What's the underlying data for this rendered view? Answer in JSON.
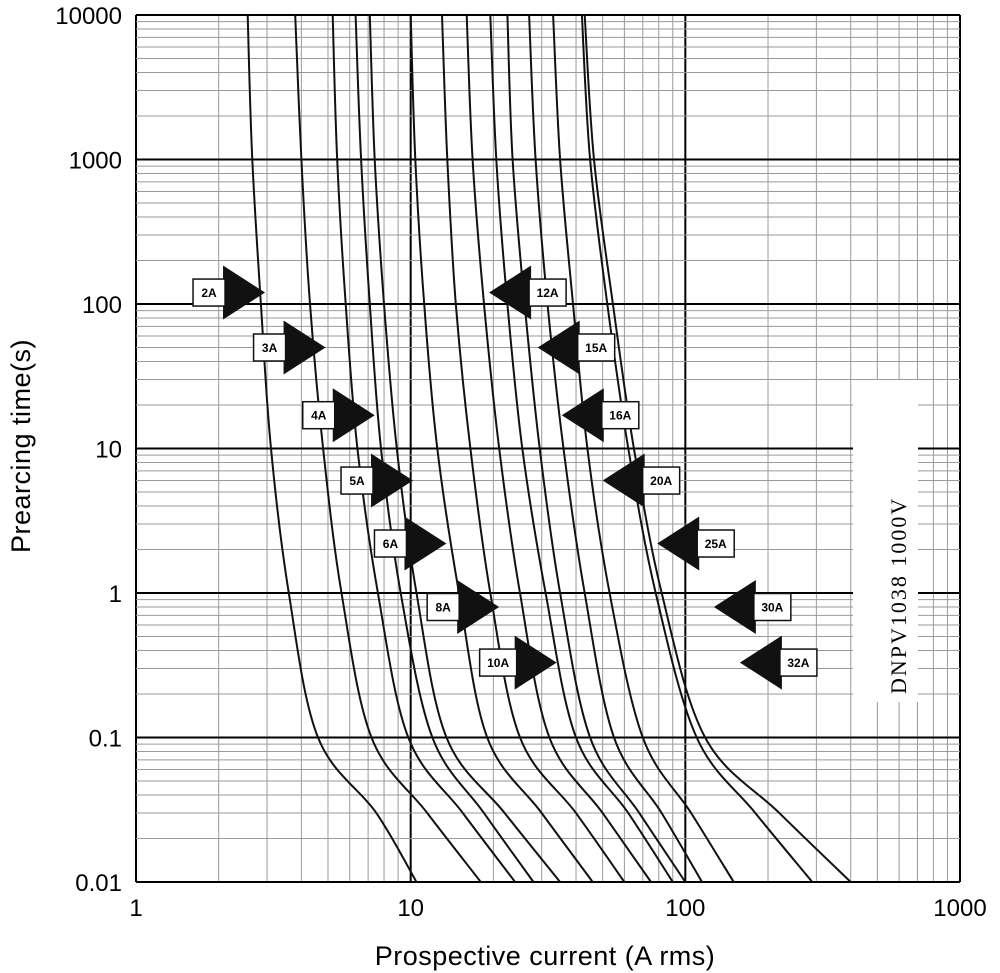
{
  "chart_data": {
    "type": "line",
    "title": "",
    "xlabel": "Prospective current (A rms)",
    "ylabel": "Prearcing time(s)",
    "x_scale": "log",
    "y_scale": "log",
    "xlim": [
      1,
      1000
    ],
    "ylim": [
      0.01,
      10000
    ],
    "x_ticks": [
      "1",
      "10",
      "100",
      "1000"
    ],
    "y_ticks": [
      "10000",
      "1000",
      "100",
      "10",
      "1",
      "0.1",
      "0.01"
    ],
    "grid": true,
    "annotation": "DNPV1038 1000V",
    "series": [
      {
        "name": "2A",
        "points": [
          [
            2.55,
            10000
          ],
          [
            2.65,
            1000
          ],
          [
            2.85,
            100
          ],
          [
            3.1,
            10
          ],
          [
            3.6,
            1
          ],
          [
            4.6,
            0.1
          ],
          [
            7.5,
            0.03
          ],
          [
            10.5,
            0.01
          ]
        ]
      },
      {
        "name": "3A",
        "points": [
          [
            3.8,
            10000
          ],
          [
            4.0,
            1000
          ],
          [
            4.3,
            100
          ],
          [
            4.8,
            10
          ],
          [
            5.6,
            1
          ],
          [
            7.2,
            0.1
          ],
          [
            11.5,
            0.03
          ],
          [
            18,
            0.01
          ]
        ]
      },
      {
        "name": "4A",
        "points": [
          [
            5.2,
            10000
          ],
          [
            5.4,
            1000
          ],
          [
            5.8,
            100
          ],
          [
            6.4,
            10
          ],
          [
            7.6,
            1
          ],
          [
            9.8,
            0.1
          ],
          [
            15.5,
            0.03
          ],
          [
            24,
            0.01
          ]
        ]
      },
      {
        "name": "5A",
        "points": [
          [
            6.3,
            10000
          ],
          [
            6.6,
            1000
          ],
          [
            7.1,
            100
          ],
          [
            7.8,
            10
          ],
          [
            9.2,
            1
          ],
          [
            12,
            0.1
          ],
          [
            18.5,
            0.03
          ],
          [
            28,
            0.01
          ]
        ]
      },
      {
        "name": "6A",
        "points": [
          [
            7.1,
            10000
          ],
          [
            7.4,
            1000
          ],
          [
            8.0,
            100
          ],
          [
            8.9,
            10
          ],
          [
            10.5,
            1
          ],
          [
            13.5,
            0.1
          ],
          [
            22,
            0.03
          ],
          [
            35,
            0.01
          ]
        ]
      },
      {
        "name": "8A",
        "points": [
          [
            10,
            10000
          ],
          [
            10.4,
            1000
          ],
          [
            11.2,
            100
          ],
          [
            12.5,
            10
          ],
          [
            15,
            1
          ],
          [
            19,
            0.1
          ],
          [
            30,
            0.03
          ],
          [
            46,
            0.01
          ]
        ]
      },
      {
        "name": "10A",
        "points": [
          [
            13,
            10000
          ],
          [
            13.6,
            1000
          ],
          [
            14.6,
            100
          ],
          [
            16.5,
            10
          ],
          [
            19.5,
            1
          ],
          [
            25,
            0.1
          ],
          [
            40,
            0.03
          ],
          [
            60,
            0.01
          ]
        ]
      },
      {
        "name": "12A",
        "points": [
          [
            16,
            10000
          ],
          [
            16.8,
            1000
          ],
          [
            18.5,
            100
          ],
          [
            21,
            10
          ],
          [
            25,
            1
          ],
          [
            32,
            0.1
          ],
          [
            50,
            0.03
          ],
          [
            75,
            0.01
          ]
        ]
      },
      {
        "name": "15A",
        "points": [
          [
            19.5,
            10000
          ],
          [
            20.5,
            1000
          ],
          [
            22.5,
            100
          ],
          [
            25.5,
            10
          ],
          [
            31,
            1
          ],
          [
            40,
            0.1
          ],
          [
            62,
            0.03
          ],
          [
            90,
            0.01
          ]
        ]
      },
      {
        "name": "16A",
        "points": [
          [
            22.5,
            10000
          ],
          [
            23.5,
            1000
          ],
          [
            26,
            100
          ],
          [
            29.5,
            10
          ],
          [
            35,
            1
          ],
          [
            45,
            0.1
          ],
          [
            68,
            0.03
          ],
          [
            100,
            0.01
          ]
        ]
      },
      {
        "name": "20A",
        "points": [
          [
            27,
            10000
          ],
          [
            28.5,
            1000
          ],
          [
            31.5,
            100
          ],
          [
            36,
            10
          ],
          [
            43,
            1
          ],
          [
            55,
            0.1
          ],
          [
            82,
            0.03
          ],
          [
            115,
            0.01
          ]
        ]
      },
      {
        "name": "25A",
        "points": [
          [
            33,
            10000
          ],
          [
            35,
            1000
          ],
          [
            39,
            100
          ],
          [
            44,
            10
          ],
          [
            53,
            1
          ],
          [
            70,
            0.1
          ],
          [
            105,
            0.03
          ],
          [
            150,
            0.01
          ]
        ]
      },
      {
        "name": "30A",
        "points": [
          [
            42,
            10000
          ],
          [
            45,
            1000
          ],
          [
            52,
            100
          ],
          [
            62,
            10
          ],
          [
            78,
            1
          ],
          [
            110,
            0.1
          ],
          [
            180,
            0.03
          ],
          [
            290,
            0.01
          ]
        ]
      },
      {
        "name": "32A",
        "points": [
          [
            43,
            10000
          ],
          [
            46.5,
            1000
          ],
          [
            54.5,
            100
          ],
          [
            65,
            10
          ],
          [
            82,
            1
          ],
          [
            118,
            0.1
          ],
          [
            220,
            0.03
          ],
          [
            400,
            0.01
          ]
        ]
      }
    ],
    "markers": [
      {
        "label": "2A",
        "direction": "right",
        "point": [
          2.95,
          120
        ]
      },
      {
        "label": "3A",
        "direction": "right",
        "point": [
          4.9,
          50
        ]
      },
      {
        "label": "4A",
        "direction": "right",
        "point": [
          7.4,
          17
        ]
      },
      {
        "label": "5A",
        "direction": "right",
        "point": [
          10.2,
          6
        ]
      },
      {
        "label": "6A",
        "direction": "right",
        "point": [
          13.5,
          2.2
        ]
      },
      {
        "label": "8A",
        "direction": "right",
        "point": [
          21,
          0.8
        ]
      },
      {
        "label": "10A",
        "direction": "right",
        "point": [
          34,
          0.33
        ]
      },
      {
        "label": "12A",
        "direction": "left",
        "point": [
          19.3,
          120
        ]
      },
      {
        "label": "15A",
        "direction": "left",
        "point": [
          29,
          50
        ]
      },
      {
        "label": "16A",
        "direction": "left",
        "point": [
          35.5,
          17
        ]
      },
      {
        "label": "20A",
        "direction": "left",
        "point": [
          50,
          6
        ]
      },
      {
        "label": "25A",
        "direction": "left",
        "point": [
          79,
          2.2
        ]
      },
      {
        "label": "30A",
        "direction": "left",
        "point": [
          127,
          0.8
        ]
      },
      {
        "label": "32A",
        "direction": "left",
        "point": [
          158,
          0.33
        ]
      }
    ]
  }
}
